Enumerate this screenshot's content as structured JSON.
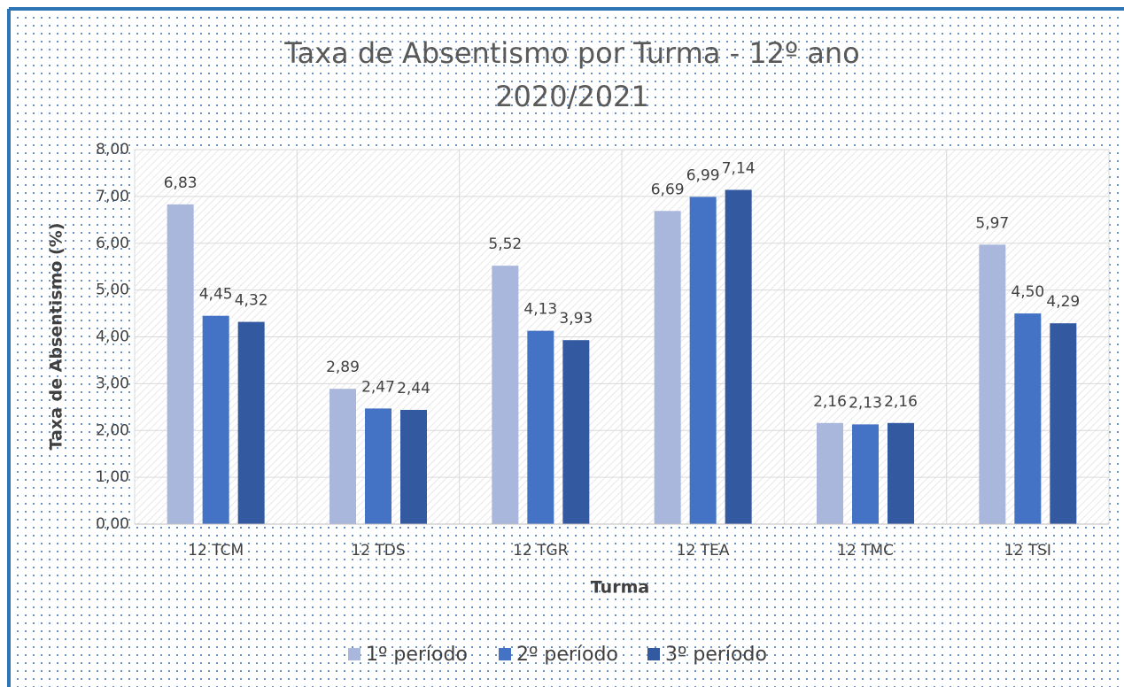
{
  "chart_data": {
    "type": "bar",
    "title": [
      "Taxa de Absentismo por Turma - 12º ano",
      "2020/2021"
    ],
    "x_label": "Turma",
    "y_label": "Taxa de Absentismo (%)",
    "categories": [
      "12 TCM",
      "12 TDS",
      "12 TGR",
      "12 TEA",
      "12 TMC",
      "12 TSI"
    ],
    "series": [
      {
        "name": "1º período",
        "color": "#a9b7dc",
        "values": [
          6.83,
          2.89,
          5.52,
          6.69,
          2.16,
          5.97
        ],
        "value_labels": [
          "6,83",
          "2,89",
          "5,52",
          "6,69",
          "2,16",
          "5,97"
        ]
      },
      {
        "name": "2º período",
        "color": "#4472c4",
        "values": [
          4.45,
          2.47,
          4.13,
          6.99,
          2.13,
          4.5
        ],
        "value_labels": [
          "4,45",
          "2,47",
          "4,13",
          "6,99",
          "2,13",
          "4,50"
        ]
      },
      {
        "name": "3º período",
        "color": "#335aa1",
        "values": [
          4.32,
          2.44,
          3.93,
          7.14,
          2.16,
          4.29
        ],
        "value_labels": [
          "4,32",
          "2,44",
          "3,93",
          "7,14",
          "2,16",
          "4,29"
        ]
      }
    ],
    "ylim": [
      0,
      8
    ],
    "yticks": [
      {
        "value": 0,
        "label": "0,00"
      },
      {
        "value": 1,
        "label": "1,00"
      },
      {
        "value": 2,
        "label": "2,00"
      },
      {
        "value": 3,
        "label": "3,00"
      },
      {
        "value": 4,
        "label": "4,00"
      },
      {
        "value": 5,
        "label": "5,00"
      },
      {
        "value": 6,
        "label": "6,00"
      },
      {
        "value": 7,
        "label": "7,00"
      },
      {
        "value": 8,
        "label": "8,00"
      }
    ],
    "grid": true,
    "legend": "bottom"
  }
}
